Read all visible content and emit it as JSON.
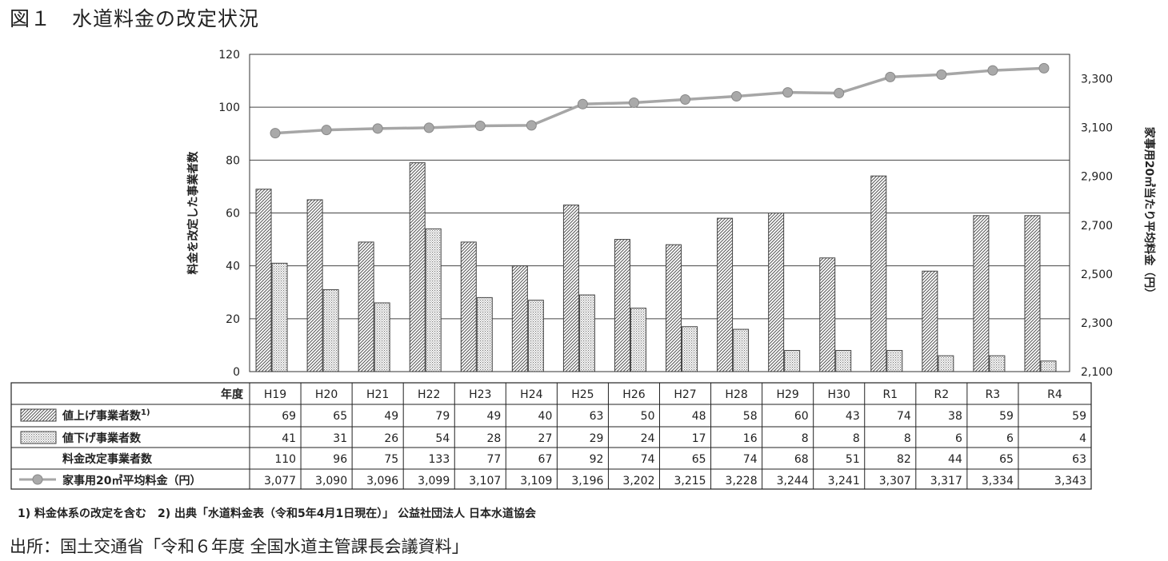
{
  "figure_title": "図１　水道料金の改定状況",
  "footnote": "1) 料金体系の改定を含む　2) 出典「水道料金表（令和5年4月1日現在）」 公益社団法人 日本水道協会",
  "source": "出所：国土交通省「令和６年度 全国水道主管課長会議資料」",
  "chart_data": {
    "type": "bar",
    "categories": [
      "H19",
      "H20",
      "H21",
      "H22",
      "H23",
      "H24",
      "H25",
      "H26",
      "H27",
      "H28",
      "H29",
      "H30",
      "R1",
      "R2",
      "R3",
      "R4"
    ],
    "table_header_label": "年度",
    "ylabel": "料金を改定した事業者数",
    "y2label": "家事用20㎥当たり平均料金（円）",
    "ylim": [
      0,
      120
    ],
    "yticks": [
      "0",
      "20",
      "40",
      "60",
      "80",
      "100",
      "120"
    ],
    "y2lim": [
      2100,
      3400
    ],
    "y2ticks": [
      "2,100",
      "2,300",
      "2,500",
      "2,700",
      "2,900",
      "3,100",
      "3,300"
    ],
    "grid": true,
    "series": [
      {
        "name": "値上げ事業者数",
        "name_sup": "1)",
        "type": "bar",
        "pattern": "diagonal-hatch",
        "values": [
          69,
          65,
          49,
          79,
          49,
          40,
          63,
          50,
          48,
          58,
          60,
          43,
          74,
          38,
          59,
          59
        ]
      },
      {
        "name": "値下げ事業者数",
        "type": "bar",
        "pattern": "dots",
        "values": [
          41,
          31,
          26,
          54,
          28,
          27,
          29,
          24,
          17,
          16,
          8,
          8,
          8,
          6,
          6,
          4
        ]
      },
      {
        "name": "料金改定事業者数",
        "type": "table-only",
        "values": [
          110,
          96,
          75,
          133,
          77,
          67,
          92,
          74,
          65,
          74,
          68,
          51,
          82,
          44,
          65,
          63
        ]
      },
      {
        "name": "家事用20㎥平均料金（円）",
        "type": "line",
        "axis": "right",
        "values": [
          3077,
          3090,
          3096,
          3099,
          3107,
          3109,
          3196,
          3202,
          3215,
          3228,
          3244,
          3241,
          3307,
          3317,
          3334,
          3343
        ],
        "labels": [
          "3,077",
          "3,090",
          "3,096",
          "3,099",
          "3,107",
          "3,109",
          "3,196",
          "3,202",
          "3,215",
          "3,228",
          "3,244",
          "3,241",
          "3,307",
          "3,317",
          "3,334",
          "3,343"
        ]
      }
    ],
    "colors": {
      "line": "#a6a6a6",
      "marker": "#a9a9a9",
      "bar_border": "#444444",
      "grid": "#444444"
    }
  }
}
